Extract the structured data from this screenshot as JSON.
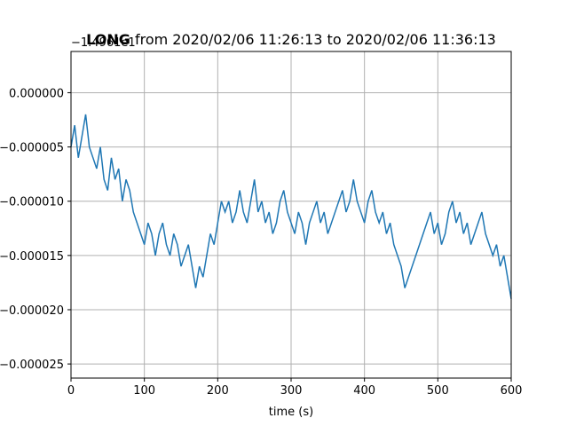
{
  "chart_data": {
    "type": "line",
    "title_bold": "LONG",
    "title_rest": " from 2020/02/06 11:26:13 to 2020/02/06 11:36:13",
    "offset_label": "−1.4961e1",
    "xlabel": "time (s)",
    "ylabel": "",
    "xlim": [
      0,
      600
    ],
    "ylim": [
      -2.63e-05,
      3.8e-06
    ],
    "x_ticks": [
      0,
      100,
      200,
      300,
      400,
      500,
      600
    ],
    "x_tick_labels": [
      "0",
      "100",
      "200",
      "300",
      "400",
      "500",
      "600"
    ],
    "y_ticks": [
      0.0,
      -5e-06,
      -1e-05,
      -1.5e-05,
      -2e-05,
      -2.5e-05
    ],
    "y_tick_labels": [
      "0.000000",
      "−0.000005",
      "−0.000010",
      "−0.000015",
      "−0.000020",
      "−0.000025"
    ],
    "grid": true,
    "line_color": "#1f77b4",
    "series": [
      {
        "x": [
          0,
          5,
          10,
          15,
          20,
          25,
          30,
          35,
          40,
          45,
          50,
          55,
          60,
          65,
          70,
          75,
          80,
          85,
          90,
          95,
          100,
          105,
          110,
          115,
          120,
          125,
          130,
          135,
          140,
          145,
          150,
          155,
          160,
          165,
          170,
          175,
          180,
          185,
          190,
          195,
          200,
          205,
          210,
          215,
          220,
          225,
          230,
          235,
          240,
          245,
          250,
          255,
          260,
          265,
          270,
          275,
          280,
          285,
          290,
          295,
          300,
          305,
          310,
          315,
          320,
          325,
          330,
          335,
          340,
          345,
          350,
          355,
          360,
          365,
          370,
          375,
          380,
          385,
          390,
          395,
          400,
          405,
          410,
          415,
          420,
          425,
          430,
          435,
          440,
          445,
          450,
          455,
          460,
          465,
          470,
          475,
          480,
          485,
          490,
          495,
          500,
          505,
          510,
          515,
          520,
          525,
          530,
          535,
          540,
          545,
          550,
          555,
          560,
          565,
          570,
          575,
          580,
          585,
          590,
          595,
          600
        ],
        "y": [
          -5e-06,
          -3e-06,
          -6e-06,
          -4e-06,
          -2e-06,
          -5e-06,
          -6e-06,
          -7e-06,
          -5e-06,
          -8e-06,
          -9e-06,
          -6e-06,
          -8e-06,
          -7e-06,
          -1e-05,
          -8e-06,
          -9e-06,
          -1.1e-05,
          -1.2e-05,
          -1.3e-05,
          -1.4e-05,
          -1.2e-05,
          -1.3e-05,
          -1.5e-05,
          -1.3e-05,
          -1.2e-05,
          -1.4e-05,
          -1.5e-05,
          -1.3e-05,
          -1.4e-05,
          -1.6e-05,
          -1.5e-05,
          -1.4e-05,
          -1.6e-05,
          -1.8e-05,
          -1.6e-05,
          -1.7e-05,
          -1.5e-05,
          -1.3e-05,
          -1.4e-05,
          -1.2e-05,
          -1e-05,
          -1.1e-05,
          -1e-05,
          -1.2e-05,
          -1.1e-05,
          -9e-06,
          -1.1e-05,
          -1.2e-05,
          -1e-05,
          -8e-06,
          -1.1e-05,
          -1e-05,
          -1.2e-05,
          -1.1e-05,
          -1.3e-05,
          -1.2e-05,
          -1e-05,
          -9e-06,
          -1.1e-05,
          -1.2e-05,
          -1.3e-05,
          -1.1e-05,
          -1.2e-05,
          -1.4e-05,
          -1.2e-05,
          -1.1e-05,
          -1e-05,
          -1.2e-05,
          -1.1e-05,
          -1.3e-05,
          -1.2e-05,
          -1.1e-05,
          -1e-05,
          -9e-06,
          -1.1e-05,
          -1e-05,
          -8e-06,
          -1e-05,
          -1.1e-05,
          -1.2e-05,
          -1e-05,
          -9e-06,
          -1.1e-05,
          -1.2e-05,
          -1.1e-05,
          -1.3e-05,
          -1.2e-05,
          -1.4e-05,
          -1.5e-05,
          -1.6e-05,
          -1.8e-05,
          -1.7e-05,
          -1.6e-05,
          -1.5e-05,
          -1.4e-05,
          -1.3e-05,
          -1.2e-05,
          -1.1e-05,
          -1.3e-05,
          -1.2e-05,
          -1.4e-05,
          -1.3e-05,
          -1.1e-05,
          -1e-05,
          -1.2e-05,
          -1.1e-05,
          -1.3e-05,
          -1.2e-05,
          -1.4e-05,
          -1.3e-05,
          -1.2e-05,
          -1.1e-05,
          -1.3e-05,
          -1.4e-05,
          -1.5e-05,
          -1.4e-05,
          -1.6e-05,
          -1.5e-05,
          -1.7e-05,
          -1.9e-05
        ]
      }
    ]
  }
}
